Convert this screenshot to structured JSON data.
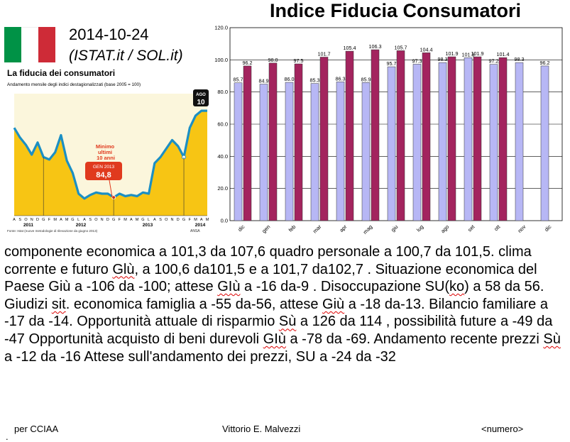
{
  "header": {
    "title": "Indice Fiducia Consumatori",
    "date": "2014-10-24",
    "source": "(ISTAT.it / SOL.it)",
    "flag_colors": [
      "#009246",
      "#ffffff",
      "#ce2b37"
    ]
  },
  "inset": {
    "title": "La fiducia dei consumatori",
    "subtitle": "Andamento mensile degli indici destagionalizzati (base 2005 = 100)",
    "callout_title": "Minimo ultimi 10 anni",
    "callout_month": "GEN 2013",
    "callout_value": "84,8",
    "badge_top": "AGO",
    "badge_value": "10",
    "footnote": "Fonte: Istat (nuove metodologie di rilevazione da giugno 2013)",
    "agency": "ANSA",
    "month_letters": [
      "A",
      "S",
      "O",
      "N",
      "D",
      "G",
      "F",
      "M",
      "A",
      "M",
      "G",
      "L",
      "A",
      "S",
      "O",
      "N",
      "D",
      "G",
      "F",
      "M",
      "A",
      "M",
      "G",
      "L",
      "A",
      "S",
      "O",
      "N",
      "D",
      "G",
      "F",
      "M",
      "A",
      "M"
    ],
    "years": [
      "2011",
      "2012",
      "2013",
      "2014"
    ],
    "line_color": "#1b8fc4",
    "fill_color": "#f7c514"
  },
  "chart_data": {
    "type": "bar",
    "categories": [
      "dic",
      "gen",
      "feb",
      "mar",
      "apr",
      "mag",
      "giu",
      "lug",
      "ago",
      "set",
      "ott",
      "nov",
      "dic"
    ],
    "series": [
      {
        "name": "",
        "color": "#b7b7f5",
        "values": [
          85.7,
          84.9,
          86.0,
          85.3,
          86.3,
          85.9,
          95.7,
          97.3,
          98.3,
          101.3,
          97.2,
          98.3,
          96.2
        ]
      },
      {
        "name": "",
        "color": "#a3245e",
        "values": [
          96.2,
          98.0,
          97.5,
          101.7,
          105.4,
          106.3,
          105.7,
          104.4,
          101.9,
          101.9,
          101.4,
          null,
          null
        ]
      }
    ],
    "value_labels": [
      [
        "85.7",
        "84.9",
        "86.0",
        "85.3",
        "86.3",
        "85.9",
        "95.7",
        "97.3",
        "98.3",
        "101.3",
        "97.2",
        "98.3",
        "96.2"
      ],
      [
        "96.2",
        "98.0",
        "97.5",
        "101.7",
        "105.4",
        "106.3",
        "105.7",
        "104.4",
        "101.9",
        "101.9",
        "101.4",
        "",
        ""
      ]
    ],
    "ylim": [
      0,
      120
    ],
    "yticks": [
      "0.0",
      "20.0",
      "40.0",
      "60.0",
      "80.0",
      "100.0",
      "120.0"
    ],
    "ytick_values": [
      0,
      20,
      40,
      60,
      80,
      100,
      120
    ],
    "grid": true,
    "legend": "none"
  },
  "body": {
    "segments": [
      {
        "t": "componente economica a 101,3 da 107,6 quadro personale a 100,7 da 101,5. clima corrente e futuro "
      },
      {
        "t": "Glù",
        "u": true
      },
      {
        "t": ", a 100,6 da101,5 e a 101,7 da102,7 . Situazione economica del Paese Giù a -106 da -100; attese "
      },
      {
        "t": "GIù",
        "u": true
      },
      {
        "t": " a -16 da-9 . Disoccupazione SU("
      },
      {
        "t": "ko",
        "u": true
      },
      {
        "t": ") a 58 da 56. Giudizi "
      },
      {
        "t": "sit",
        "u": true
      },
      {
        "t": ". economica famiglia a -55 da-56, attese "
      },
      {
        "t": "Giù",
        "u": true
      },
      {
        "t": " a -18 da-13. Bilancio familiare a -17 da -14. Opportunità attuale di risparmio "
      },
      {
        "t": "Sù",
        "u": true
      },
      {
        "t": " a 126 da 114 , possibilità future a -49 da -47 Opportunità acquisto di beni durevoli "
      },
      {
        "t": "GIù",
        "u": true
      },
      {
        "t": " a -78 da -69. Andamento recente prezzi "
      },
      {
        "t": "Sù",
        "u": true
      },
      {
        "t": " a -12 da -16 Attese sull'andamento dei prezzi, SU a -24 da -32"
      }
    ]
  },
  "footer": {
    "left": "per CCIAA",
    "center": "Vittorio E. Malvezzi",
    "right": "<numero>",
    "dot": "."
  }
}
